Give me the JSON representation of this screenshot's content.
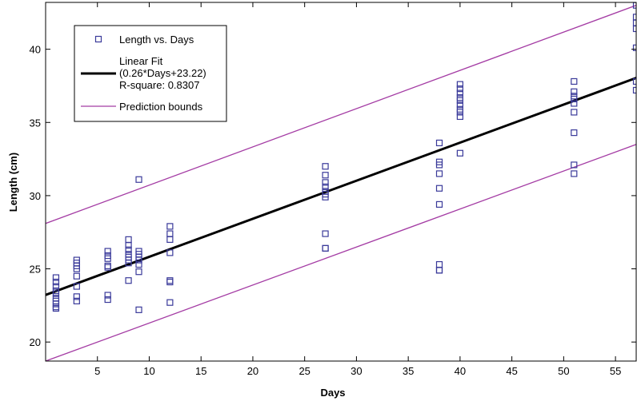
{
  "chart_data": {
    "type": "scatter",
    "title": "",
    "xlabel": "Days",
    "ylabel": "Length (cm)",
    "xlim": [
      0,
      57
    ],
    "ylim": [
      18.7,
      43.2
    ],
    "xticks": [
      5,
      10,
      15,
      20,
      25,
      30,
      35,
      40,
      45,
      50,
      55
    ],
    "yticks": [
      20,
      25,
      30,
      35,
      40
    ],
    "grid": false,
    "legend_position": "top-left",
    "colors": {
      "points": "#3a3a9a",
      "fit": "#000000",
      "bounds": "#a43ca4",
      "axis": "#000000"
    },
    "series": [
      {
        "name": "Length vs. Days",
        "kind": "points",
        "x": [
          1,
          1,
          1,
          1,
          1,
          1,
          1,
          1,
          1,
          1,
          3,
          3,
          3,
          3,
          3,
          3,
          3,
          3,
          6,
          6,
          6,
          6,
          6,
          6,
          6,
          8,
          8,
          8,
          8,
          8,
          8,
          8,
          8,
          9,
          9,
          9,
          9,
          9,
          9,
          9,
          9,
          12,
          12,
          12,
          12,
          12,
          12,
          12,
          27,
          27,
          27,
          27,
          27,
          27,
          27,
          27,
          27,
          27,
          38,
          38,
          38,
          38,
          38,
          38,
          38,
          38,
          38,
          40,
          40,
          40,
          40,
          40,
          40,
          40,
          40,
          40,
          40,
          51,
          51,
          51,
          51,
          51,
          51,
          51,
          51,
          51,
          57,
          57,
          57,
          57,
          57,
          57,
          57
        ],
        "y": [
          24.4,
          24.1,
          23.8,
          23.5,
          23.3,
          23.0,
          22.8,
          22.6,
          22.4,
          22.3,
          25.6,
          25.4,
          25.2,
          25.0,
          24.5,
          23.8,
          23.1,
          22.8,
          26.2,
          25.9,
          25.7,
          25.2,
          25.1,
          23.2,
          22.9,
          27.0,
          26.6,
          26.3,
          26.0,
          25.8,
          25.6,
          25.4,
          24.2,
          31.1,
          26.2,
          26.0,
          25.8,
          25.6,
          25.3,
          24.8,
          22.2,
          27.9,
          27.4,
          27.0,
          26.1,
          24.2,
          24.1,
          22.7,
          32.0,
          31.4,
          30.9,
          30.6,
          30.3,
          30.1,
          29.9,
          27.4,
          26.4,
          26.4,
          33.6,
          32.3,
          32.1,
          31.5,
          30.5,
          29.4,
          25.3,
          24.9,
          24.9,
          37.6,
          37.3,
          37.0,
          36.7,
          36.5,
          36.2,
          35.9,
          35.7,
          35.4,
          32.9,
          37.8,
          37.1,
          36.8,
          36.6,
          36.3,
          35.7,
          34.3,
          32.1,
          31.5,
          43.0,
          42.2,
          41.8,
          41.4,
          40.1,
          37.8,
          37.2
        ]
      },
      {
        "name": "Linear Fit",
        "kind": "line",
        "x": [
          0,
          57
        ],
        "y": [
          23.22,
          38.04
        ]
      },
      {
        "name": "Prediction bounds",
        "kind": "line",
        "x": [
          0,
          57
        ],
        "y": [
          28.1,
          43.0
        ]
      },
      {
        "name": "Prediction bounds",
        "kind": "line",
        "x": [
          0,
          57
        ],
        "y": [
          18.7,
          33.5
        ]
      }
    ],
    "legend": [
      {
        "label": "Length vs. Days",
        "marker": "square"
      },
      {
        "label": "Linear Fit",
        "marker": "line",
        "lines": [
          "Linear Fit",
          "(0.26*Days+23.22)",
          "R-square: 0.8307"
        ]
      },
      {
        "label": "Prediction bounds",
        "marker": "thin-line"
      }
    ]
  }
}
